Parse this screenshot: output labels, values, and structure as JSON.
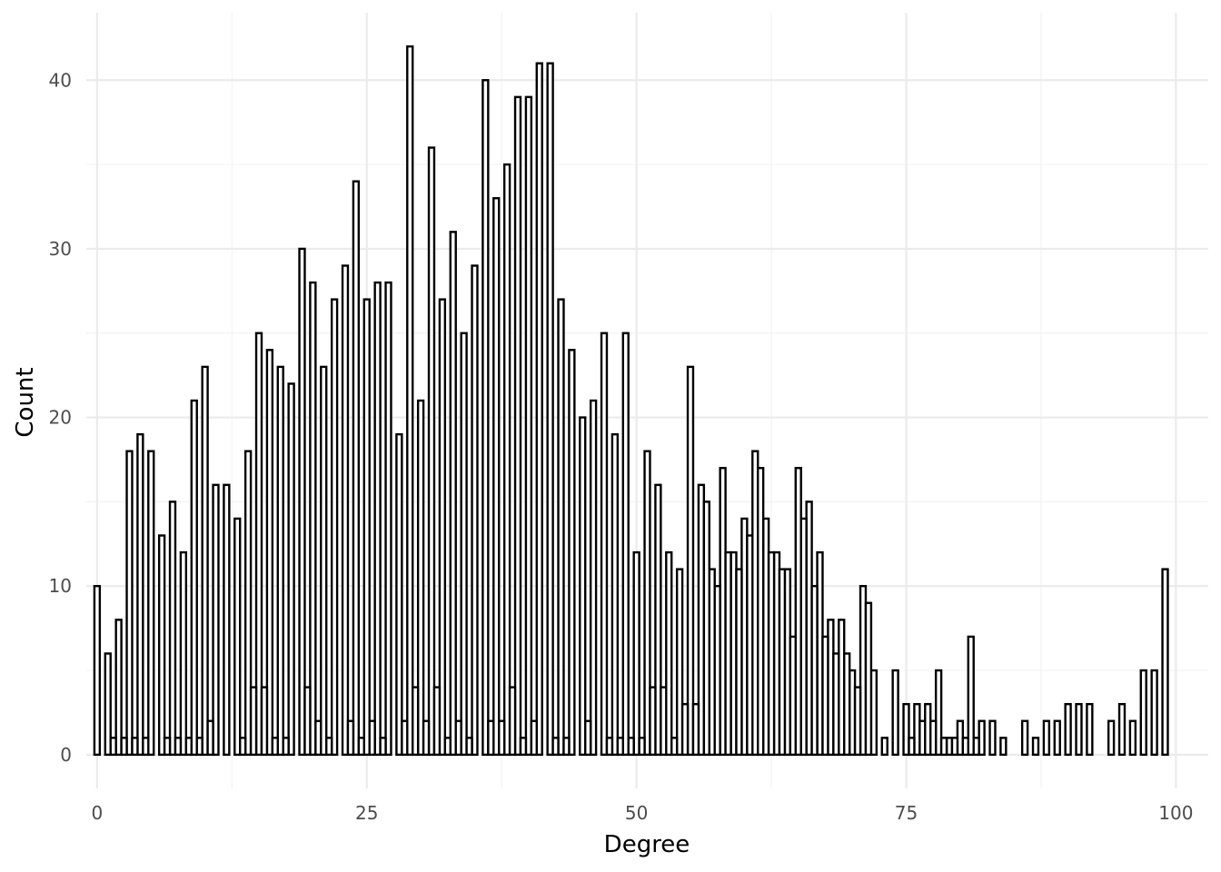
{
  "chart_data": {
    "type": "bar",
    "xlabel": "Degree",
    "ylabel": "Count",
    "xlim": [
      -1,
      103
    ],
    "ylim": [
      -2,
      44
    ],
    "x_ticks": [
      0,
      25,
      50,
      75,
      100
    ],
    "y_ticks": [
      0,
      10,
      20,
      30,
      40
    ],
    "grid": true,
    "binwidth": 0.5,
    "legend": "none",
    "colors": {
      "fill": "#ffffff",
      "outline": "#000000",
      "grid": "#ebebeb"
    },
    "series": [
      {
        "values": [
          {
            "x": 0,
            "y": 10
          },
          {
            "x": 1,
            "y": 6
          },
          {
            "x": 2,
            "y": 8
          },
          {
            "x": 3,
            "y": 18
          },
          {
            "x": 4,
            "y": 19
          },
          {
            "x": 5,
            "y": 18
          },
          {
            "x": 6,
            "y": 13
          },
          {
            "x": 7,
            "y": 15
          },
          {
            "x": 8,
            "y": 12
          },
          {
            "x": 9,
            "y": 21
          },
          {
            "x": 10,
            "y": 23
          },
          {
            "x": 11,
            "y": 16
          },
          {
            "x": 12,
            "y": 16
          },
          {
            "x": 13,
            "y": 14
          },
          {
            "x": 14,
            "y": 18
          },
          {
            "x": 15,
            "y": 25
          },
          {
            "x": 16,
            "y": 24
          },
          {
            "x": 17,
            "y": 23
          },
          {
            "x": 18,
            "y": 22
          },
          {
            "x": 19,
            "y": 30
          },
          {
            "x": 20,
            "y": 28
          },
          {
            "x": 21,
            "y": 23
          },
          {
            "x": 22,
            "y": 27
          },
          {
            "x": 23,
            "y": 29
          },
          {
            "x": 24,
            "y": 34
          },
          {
            "x": 25,
            "y": 27
          },
          {
            "x": 26,
            "y": 28
          },
          {
            "x": 27,
            "y": 28
          },
          {
            "x": 28,
            "y": 19
          },
          {
            "x": 29,
            "y": 42
          },
          {
            "x": 30,
            "y": 21
          },
          {
            "x": 31,
            "y": 36
          },
          {
            "x": 32,
            "y": 27
          },
          {
            "x": 33,
            "y": 31
          },
          {
            "x": 34,
            "y": 25
          },
          {
            "x": 35,
            "y": 29
          },
          {
            "x": 36,
            "y": 40
          },
          {
            "x": 37,
            "y": 33
          },
          {
            "x": 38,
            "y": 35
          },
          {
            "x": 39,
            "y": 39
          },
          {
            "x": 40,
            "y": 39
          },
          {
            "x": 41,
            "y": 41
          },
          {
            "x": 42,
            "y": 41
          },
          {
            "x": 43,
            "y": 27
          },
          {
            "x": 44,
            "y": 24
          },
          {
            "x": 45,
            "y": 20
          },
          {
            "x": 46,
            "y": 21
          },
          {
            "x": 47,
            "y": 25
          },
          {
            "x": 48,
            "y": 19
          },
          {
            "x": 49,
            "y": 25
          },
          {
            "x": 50,
            "y": 12
          },
          {
            "x": 51,
            "y": 18
          },
          {
            "x": 52,
            "y": 16
          },
          {
            "x": 53,
            "y": 12
          },
          {
            "x": 54,
            "y": 11
          },
          {
            "x": 55,
            "y": 23
          },
          {
            "x": 56,
            "y": 16
          },
          {
            "x": 57,
            "y": 11
          },
          {
            "x": 58,
            "y": 17
          },
          {
            "x": 59,
            "y": 12
          },
          {
            "x": 60,
            "y": 14
          },
          {
            "x": 61,
            "y": 18
          },
          {
            "x": 62,
            "y": 14
          },
          {
            "x": 63,
            "y": 12
          },
          {
            "x": 64,
            "y": 11
          },
          {
            "x": 65,
            "y": 17
          },
          {
            "x": 66,
            "y": 15
          },
          {
            "x": 67,
            "y": 12
          },
          {
            "x": 68,
            "y": 8
          },
          {
            "x": 69,
            "y": 8
          },
          {
            "x": 70,
            "y": 5
          },
          {
            "x": 71,
            "y": 10
          },
          {
            "x": 72,
            "y": 5
          },
          {
            "x": 73,
            "y": 1
          },
          {
            "x": 74,
            "y": 5
          },
          {
            "x": 75,
            "y": 3
          },
          {
            "x": 76,
            "y": 3
          },
          {
            "x": 77,
            "y": 3
          },
          {
            "x": 78,
            "y": 5
          },
          {
            "x": 79,
            "y": 1
          },
          {
            "x": 80,
            "y": 2
          },
          {
            "x": 81,
            "y": 7
          },
          {
            "x": 82,
            "y": 2
          },
          {
            "x": 83,
            "y": 2
          },
          {
            "x": 84,
            "y": 1
          },
          {
            "x": 86,
            "y": 2
          },
          {
            "x": 87,
            "y": 1
          },
          {
            "x": 88,
            "y": 2
          },
          {
            "x": 89,
            "y": 2
          },
          {
            "x": 90,
            "y": 3
          },
          {
            "x": 91,
            "y": 3
          },
          {
            "x": 92,
            "y": 3
          },
          {
            "x": 94,
            "y": 2
          },
          {
            "x": 95,
            "y": 3
          },
          {
            "x": 96,
            "y": 2
          },
          {
            "x": 97,
            "y": 5
          },
          {
            "x": 98,
            "y": 5
          },
          {
            "x": 99,
            "y": 11
          }
        ]
      },
      {
        "values": [
          {
            "x": 0.5,
            "y": 0
          },
          {
            "x": 1.5,
            "y": 1
          },
          {
            "x": 2.5,
            "y": 1
          },
          {
            "x": 3.5,
            "y": 1
          },
          {
            "x": 4.5,
            "y": 1
          },
          {
            "x": 5.5,
            "y": 0
          },
          {
            "x": 6.5,
            "y": 1
          },
          {
            "x": 7.5,
            "y": 1
          },
          {
            "x": 8.5,
            "y": 1
          },
          {
            "x": 9.5,
            "y": 1
          },
          {
            "x": 10.5,
            "y": 2
          },
          {
            "x": 11.5,
            "y": 0
          },
          {
            "x": 12.5,
            "y": 0
          },
          {
            "x": 13.5,
            "y": 1
          },
          {
            "x": 14.5,
            "y": 4
          },
          {
            "x": 15.5,
            "y": 4
          },
          {
            "x": 16.5,
            "y": 1
          },
          {
            "x": 17.5,
            "y": 1
          },
          {
            "x": 18.5,
            "y": 0
          },
          {
            "x": 19.5,
            "y": 4
          },
          {
            "x": 20.5,
            "y": 2
          },
          {
            "x": 21.5,
            "y": 1
          },
          {
            "x": 22.5,
            "y": 0
          },
          {
            "x": 23.5,
            "y": 2
          },
          {
            "x": 24.5,
            "y": 1
          },
          {
            "x": 25.5,
            "y": 2
          },
          {
            "x": 26.5,
            "y": 1
          },
          {
            "x": 27.5,
            "y": 0
          },
          {
            "x": 28.5,
            "y": 2
          },
          {
            "x": 29.5,
            "y": 4
          },
          {
            "x": 30.5,
            "y": 2
          },
          {
            "x": 31.5,
            "y": 4
          },
          {
            "x": 32.5,
            "y": 1
          },
          {
            "x": 33.5,
            "y": 2
          },
          {
            "x": 34.5,
            "y": 1
          },
          {
            "x": 35.5,
            "y": 0
          },
          {
            "x": 36.5,
            "y": 2
          },
          {
            "x": 37.5,
            "y": 2
          },
          {
            "x": 38.5,
            "y": 4
          },
          {
            "x": 39.5,
            "y": 1
          },
          {
            "x": 40.5,
            "y": 2
          },
          {
            "x": 41.5,
            "y": 0
          },
          {
            "x": 42.5,
            "y": 1
          },
          {
            "x": 43.5,
            "y": 1
          },
          {
            "x": 44.5,
            "y": 0
          },
          {
            "x": 45.5,
            "y": 2
          },
          {
            "x": 46.5,
            "y": 0
          },
          {
            "x": 47.5,
            "y": 1
          },
          {
            "x": 48.5,
            "y": 1
          },
          {
            "x": 49.5,
            "y": 1
          },
          {
            "x": 50.5,
            "y": 1
          },
          {
            "x": 51.5,
            "y": 4
          },
          {
            "x": 52.5,
            "y": 4
          },
          {
            "x": 53.5,
            "y": 1
          },
          {
            "x": 54.5,
            "y": 3
          },
          {
            "x": 55.5,
            "y": 3
          },
          {
            "x": 56.5,
            "y": 15
          },
          {
            "x": 57.5,
            "y": 10
          },
          {
            "x": 58.5,
            "y": 12
          },
          {
            "x": 59.5,
            "y": 11
          },
          {
            "x": 60.5,
            "y": 13
          },
          {
            "x": 61.5,
            "y": 17
          },
          {
            "x": 62.5,
            "y": 12
          },
          {
            "x": 63.5,
            "y": 11
          },
          {
            "x": 64.5,
            "y": 7
          },
          {
            "x": 65.5,
            "y": 14
          },
          {
            "x": 66.5,
            "y": 10
          },
          {
            "x": 67.5,
            "y": 7
          },
          {
            "x": 68.5,
            "y": 6
          },
          {
            "x": 69.5,
            "y": 6
          },
          {
            "x": 70.5,
            "y": 4
          },
          {
            "x": 71.5,
            "y": 9
          },
          {
            "x": 72.5,
            "y": 0
          },
          {
            "x": 73.5,
            "y": 0
          },
          {
            "x": 74.5,
            "y": 0
          },
          {
            "x": 75.5,
            "y": 1
          },
          {
            "x": 76.5,
            "y": 2
          },
          {
            "x": 77.5,
            "y": 2
          },
          {
            "x": 78.5,
            "y": 1
          },
          {
            "x": 79.5,
            "y": 1
          },
          {
            "x": 80.5,
            "y": 1
          },
          {
            "x": 81.5,
            "y": 1
          },
          {
            "x": 82.5,
            "y": 0
          },
          {
            "x": 83.5,
            "y": 0
          },
          {
            "x": 84.5,
            "y": 0
          },
          {
            "x": 86.5,
            "y": 0
          },
          {
            "x": 87.5,
            "y": 0
          },
          {
            "x": 88.5,
            "y": 0
          },
          {
            "x": 89.5,
            "y": 0
          },
          {
            "x": 90.5,
            "y": 0
          },
          {
            "x": 91.5,
            "y": 0
          },
          {
            "x": 92.5,
            "y": 0
          },
          {
            "x": 94.5,
            "y": 0
          },
          {
            "x": 95.5,
            "y": 0
          },
          {
            "x": 96.5,
            "y": 0
          },
          {
            "x": 97.5,
            "y": 0
          },
          {
            "x": 98.5,
            "y": 0
          },
          {
            "x": 99.5,
            "y": 0
          }
        ]
      }
    ]
  }
}
